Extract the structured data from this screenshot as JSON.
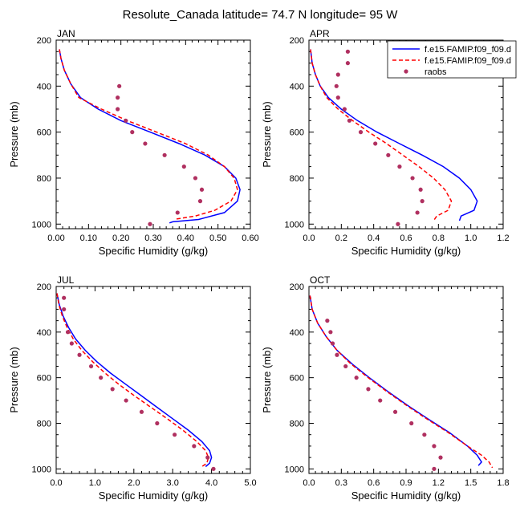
{
  "figure": {
    "title": "Resolute_Canada  latitude= 74.7 N longitude= 95 W"
  },
  "legend": {
    "entries": [
      {
        "label": "f.e15.FAMIP.f09_f09.d",
        "style": "solid",
        "color": "#0000ff"
      },
      {
        "label": "f.e15.FAMIP.f09_f09.d",
        "style": "dashed",
        "color": "#ff0000"
      },
      {
        "label": "raobs",
        "style": "marker",
        "color": "#b03060"
      }
    ]
  },
  "chart_data": [
    {
      "type": "line",
      "panel": "JAN",
      "xlabel": "Specific Humidity (g/kg)",
      "ylabel": "Pressure (mb)",
      "xlim": [
        0,
        0.6
      ],
      "ylim": [
        200,
        1020
      ],
      "y_inverted": true,
      "xticks": [
        "0.00",
        "0.10",
        "0.20",
        "0.30",
        "0.40",
        "0.50",
        "0.60"
      ],
      "xtick_values": [
        0,
        0.1,
        0.2,
        0.3,
        0.4,
        0.5,
        0.6
      ],
      "yticks": [
        200,
        400,
        600,
        800,
        1000
      ],
      "series": [
        {
          "name": "f.e15.FAMIP.f09_f09.d",
          "style": "solid",
          "color": "#0000ff",
          "points": [
            [
              0.01,
              240
            ],
            [
              0.015,
              280
            ],
            [
              0.025,
              330
            ],
            [
              0.045,
              390
            ],
            [
              0.075,
              450
            ],
            [
              0.13,
              500
            ],
            [
              0.2,
              550
            ],
            [
              0.29,
              600
            ],
            [
              0.38,
              650
            ],
            [
              0.46,
              700
            ],
            [
              0.52,
              750
            ],
            [
              0.555,
              800
            ],
            [
              0.568,
              850
            ],
            [
              0.56,
              900
            ],
            [
              0.52,
              950
            ],
            [
              0.44,
              980
            ],
            [
              0.36,
              990
            ],
            [
              0.35,
              995
            ]
          ]
        },
        {
          "name": "f.e15.FAMIP.f09_f09.d",
          "style": "dashed",
          "color": "#ff0000",
          "points": [
            [
              0.01,
              240
            ],
            [
              0.015,
              280
            ],
            [
              0.025,
              330
            ],
            [
              0.045,
              390
            ],
            [
              0.07,
              450
            ],
            [
              0.14,
              500
            ],
            [
              0.22,
              550
            ],
            [
              0.31,
              600
            ],
            [
              0.4,
              650
            ],
            [
              0.47,
              700
            ],
            [
              0.52,
              750
            ],
            [
              0.55,
              800
            ],
            [
              0.56,
              850
            ],
            [
              0.54,
              900
            ],
            [
              0.49,
              940
            ],
            [
              0.43,
              965
            ],
            [
              0.37,
              978
            ]
          ]
        },
        {
          "name": "raobs",
          "style": "marker",
          "color": "#b03060",
          "points": [
            [
              0.195,
              400
            ],
            [
              0.19,
              450
            ],
            [
              0.19,
              500
            ],
            [
              0.215,
              550
            ],
            [
              0.235,
              600
            ],
            [
              0.275,
              650
            ],
            [
              0.335,
              700
            ],
            [
              0.395,
              750
            ],
            [
              0.43,
              800
            ],
            [
              0.45,
              850
            ],
            [
              0.445,
              900
            ],
            [
              0.375,
              950
            ],
            [
              0.29,
              1000
            ]
          ]
        }
      ]
    },
    {
      "type": "line",
      "panel": "APR",
      "xlabel": "Specific Humidity (g/kg)",
      "ylabel": "Pressure (mb)",
      "xlim": [
        0,
        1.2
      ],
      "ylim": [
        200,
        1020
      ],
      "y_inverted": true,
      "xticks": [
        "0.0",
        "0.2",
        "0.4",
        "0.6",
        "0.8",
        "1.0",
        "1.2"
      ],
      "xtick_values": [
        0,
        0.2,
        0.4,
        0.6,
        0.8,
        1.0,
        1.2
      ],
      "yticks": [
        200,
        400,
        600,
        800,
        1000
      ],
      "series": [
        {
          "name": "f.e15.FAMIP.f09_f09.d",
          "style": "solid",
          "color": "#0000ff",
          "points": [
            [
              0.01,
              240
            ],
            [
              0.02,
              300
            ],
            [
              0.04,
              350
            ],
            [
              0.07,
              400
            ],
            [
              0.12,
              450
            ],
            [
              0.2,
              500
            ],
            [
              0.3,
              550
            ],
            [
              0.42,
              600
            ],
            [
              0.56,
              650
            ],
            [
              0.7,
              700
            ],
            [
              0.83,
              750
            ],
            [
              0.93,
              800
            ],
            [
              1.0,
              850
            ],
            [
              1.04,
              900
            ],
            [
              1.02,
              940
            ],
            [
              0.94,
              965
            ],
            [
              0.93,
              985
            ]
          ]
        },
        {
          "name": "f.e15.FAMIP.f09_f09.d",
          "style": "dashed",
          "color": "#ff0000",
          "points": [
            [
              0.01,
              240
            ],
            [
              0.02,
              300
            ],
            [
              0.04,
              350
            ],
            [
              0.07,
              400
            ],
            [
              0.11,
              450
            ],
            [
              0.18,
              500
            ],
            [
              0.27,
              550
            ],
            [
              0.37,
              600
            ],
            [
              0.48,
              650
            ],
            [
              0.58,
              700
            ],
            [
              0.68,
              750
            ],
            [
              0.77,
              800
            ],
            [
              0.84,
              850
            ],
            [
              0.88,
              900
            ],
            [
              0.86,
              940
            ],
            [
              0.79,
              965
            ],
            [
              0.77,
              985
            ]
          ]
        },
        {
          "name": "raobs",
          "style": "marker",
          "color": "#b03060",
          "points": [
            [
              0.24,
              250
            ],
            [
              0.24,
              300
            ],
            [
              0.18,
              350
            ],
            [
              0.17,
              400
            ],
            [
              0.18,
              450
            ],
            [
              0.22,
              500
            ],
            [
              0.25,
              550
            ],
            [
              0.32,
              600
            ],
            [
              0.41,
              650
            ],
            [
              0.49,
              700
            ],
            [
              0.56,
              750
            ],
            [
              0.64,
              800
            ],
            [
              0.69,
              850
            ],
            [
              0.7,
              900
            ],
            [
              0.67,
              950
            ],
            [
              0.55,
              1000
            ]
          ]
        }
      ]
    },
    {
      "type": "line",
      "panel": "JUL",
      "xlabel": "Specific Humidity (g/kg)",
      "ylabel": "Pressure (mb)",
      "xlim": [
        0,
        5.0
      ],
      "ylim": [
        200,
        1020
      ],
      "y_inverted": true,
      "xticks": [
        "0.0",
        "1.0",
        "2.0",
        "3.0",
        "4.0",
        "5.0"
      ],
      "xtick_values": [
        0,
        1,
        2,
        3,
        4,
        5
      ],
      "yticks": [
        200,
        400,
        600,
        800,
        1000
      ],
      "series": [
        {
          "name": "f.e15.FAMIP.f09_f09.d",
          "style": "solid",
          "color": "#0000ff",
          "points": [
            [
              0.02,
              230
            ],
            [
              0.08,
              280
            ],
            [
              0.18,
              330
            ],
            [
              0.32,
              380
            ],
            [
              0.5,
              430
            ],
            [
              0.75,
              480
            ],
            [
              1.05,
              530
            ],
            [
              1.4,
              580
            ],
            [
              1.8,
              630
            ],
            [
              2.2,
              680
            ],
            [
              2.6,
              730
            ],
            [
              3.0,
              780
            ],
            [
              3.4,
              830
            ],
            [
              3.75,
              880
            ],
            [
              3.95,
              920
            ],
            [
              4.0,
              950
            ],
            [
              3.95,
              975
            ],
            [
              3.85,
              990
            ]
          ]
        },
        {
          "name": "f.e15.FAMIP.f09_f09.d",
          "style": "dashed",
          "color": "#ff0000",
          "points": [
            [
              0.02,
              230
            ],
            [
              0.07,
              280
            ],
            [
              0.16,
              330
            ],
            [
              0.28,
              380
            ],
            [
              0.44,
              430
            ],
            [
              0.66,
              480
            ],
            [
              0.94,
              530
            ],
            [
              1.26,
              580
            ],
            [
              1.62,
              630
            ],
            [
              2.02,
              680
            ],
            [
              2.44,
              730
            ],
            [
              2.86,
              780
            ],
            [
              3.26,
              830
            ],
            [
              3.62,
              880
            ],
            [
              3.85,
              920
            ],
            [
              3.92,
              950
            ],
            [
              3.88,
              975
            ],
            [
              3.75,
              990
            ]
          ]
        },
        {
          "name": "raobs",
          "style": "marker",
          "color": "#b03060",
          "points": [
            [
              0.2,
              250
            ],
            [
              0.2,
              300
            ],
            [
              0.3,
              400
            ],
            [
              0.4,
              450
            ],
            [
              0.6,
              500
            ],
            [
              0.9,
              550
            ],
            [
              1.15,
              600
            ],
            [
              1.45,
              650
            ],
            [
              1.8,
              700
            ],
            [
              2.2,
              750
            ],
            [
              2.6,
              800
            ],
            [
              3.05,
              850
            ],
            [
              3.55,
              900
            ],
            [
              3.9,
              950
            ],
            [
              4.05,
              1000
            ]
          ]
        }
      ]
    },
    {
      "type": "line",
      "panel": "OCT",
      "xlabel": "Specific Humidity (g/kg)",
      "ylabel": "Pressure (mb)",
      "xlim": [
        0,
        1.8
      ],
      "ylim": [
        200,
        1020
      ],
      "y_inverted": true,
      "xticks": [
        "0.0",
        "0.3",
        "0.6",
        "0.9",
        "1.2",
        "1.5",
        "1.8"
      ],
      "xtick_values": [
        0,
        0.3,
        0.6,
        0.9,
        1.2,
        1.5,
        1.8
      ],
      "yticks": [
        200,
        400,
        600,
        800,
        1000
      ],
      "series": [
        {
          "name": "f.e15.FAMIP.f09_f09.d",
          "style": "solid",
          "color": "#0000ff",
          "points": [
            [
              0.01,
              240
            ],
            [
              0.03,
              300
            ],
            [
              0.08,
              360
            ],
            [
              0.16,
              420
            ],
            [
              0.26,
              480
            ],
            [
              0.4,
              540
            ],
            [
              0.56,
              600
            ],
            [
              0.73,
              660
            ],
            [
              0.91,
              720
            ],
            [
              1.1,
              780
            ],
            [
              1.3,
              840
            ],
            [
              1.47,
              900
            ],
            [
              1.56,
              940
            ],
            [
              1.6,
              970
            ],
            [
              1.57,
              985
            ]
          ]
        },
        {
          "name": "f.e15.FAMIP.f09_f09.d",
          "style": "dashed",
          "color": "#ff0000",
          "points": [
            [
              0.01,
              240
            ],
            [
              0.03,
              300
            ],
            [
              0.08,
              360
            ],
            [
              0.16,
              420
            ],
            [
              0.26,
              480
            ],
            [
              0.39,
              540
            ],
            [
              0.55,
              600
            ],
            [
              0.72,
              660
            ],
            [
              0.9,
              720
            ],
            [
              1.09,
              780
            ],
            [
              1.29,
              840
            ],
            [
              1.47,
              900
            ],
            [
              1.6,
              940
            ],
            [
              1.67,
              970
            ],
            [
              1.7,
              995
            ]
          ]
        },
        {
          "name": "raobs",
          "style": "marker",
          "color": "#b03060",
          "points": [
            [
              0.17,
              350
            ],
            [
              0.2,
              400
            ],
            [
              0.22,
              450
            ],
            [
              0.26,
              500
            ],
            [
              0.34,
              550
            ],
            [
              0.44,
              600
            ],
            [
              0.55,
              650
            ],
            [
              0.66,
              700
            ],
            [
              0.8,
              750
            ],
            [
              0.95,
              800
            ],
            [
              1.07,
              850
            ],
            [
              1.16,
              900
            ],
            [
              1.22,
              950
            ],
            [
              1.16,
              1000
            ]
          ]
        }
      ]
    }
  ]
}
